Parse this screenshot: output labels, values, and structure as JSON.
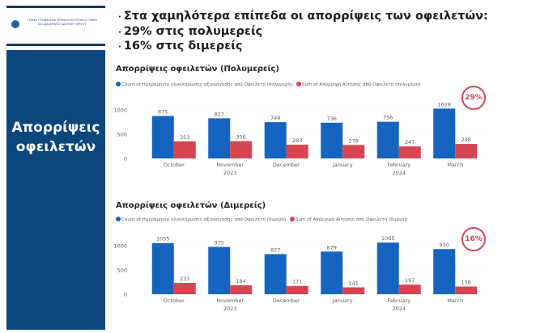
{
  "logo": {
    "text_line1": "ΓΕΝΙΚΗ ΓΡΑΜΜΑΤΕΙΑ ΧΡΗΜΑΤΟΠΙΣΤΩΤΙΚΟΥ ΤΟΜΕΑ",
    "text_line2": "ΚΑΙ ΔΙΑΧΕΙΡΙΣΗΣ ΙΔΙΩΤΙΚΟΥ ΧΡΕΟΥΣ"
  },
  "side_panel": {
    "title_line1": "Απορρίψεις",
    "title_line2": "οφειλετών"
  },
  "bullets": [
    "Στα χαμηλότερα επίπεδα οι απορρίψεις των οφειλετών:",
    "29% στις πολυμερείς",
    "16% στις διμερείς"
  ],
  "colors": {
    "blue": "#1565c0",
    "red": "#d64550",
    "panel": "#0b467d"
  },
  "chart_data": [
    {
      "type": "bar",
      "title": "Απορρίψεις οφειλετών (Πολυμερείς)",
      "badge": "29%",
      "categories": [
        "October",
        "November",
        "December",
        "January",
        "February",
        "March"
      ],
      "year_labels": [
        {
          "under": 1,
          "text": "2023"
        },
        {
          "under": 4,
          "text": "2024"
        }
      ],
      "series": [
        {
          "name": "Count of Ημερομηνία ολοκλήρωσης αξιολόγησης από Οφειλέτη (πολυμερή)",
          "color": "#1565c0",
          "values": [
            875,
            827,
            748,
            736,
            756,
            1028
          ]
        },
        {
          "name": "Sum of Απόρριψη Αίτησης από Οφειλέτη (πολυμερή)",
          "color": "#d64550",
          "values": [
            353,
            356,
            283,
            278,
            247,
            298
          ]
        }
      ],
      "yticks": [
        0,
        500,
        1000
      ],
      "ylim": [
        0,
        1100
      ],
      "grid": true,
      "legend": "top-left"
    },
    {
      "type": "bar",
      "title": "Απορρίψεις οφειλετών (Διμερείς)",
      "badge": "16%",
      "categories": [
        "October",
        "November",
        "December",
        "January",
        "February",
        "March"
      ],
      "year_labels": [
        {
          "under": 1,
          "text": "2023"
        },
        {
          "under": 4,
          "text": "2024"
        }
      ],
      "series": [
        {
          "name": "Count of Ημερομηνία ολοκλήρωσης αξιολόγησης από Οφειλέτη (διμερή)",
          "color": "#1565c0",
          "values": [
            1055,
            975,
            827,
            879,
            1065,
            930
          ]
        },
        {
          "name": "Sum of Απόρριψη Αίτησης από Οφειλέτη (διμερή)",
          "color": "#d64550",
          "values": [
            233,
            184,
            171,
            141,
            197,
            158
          ]
        }
      ],
      "yticks": [
        0,
        500,
        1000
      ],
      "ylim": [
        0,
        1100
      ],
      "grid": true,
      "legend": "top-left"
    }
  ]
}
